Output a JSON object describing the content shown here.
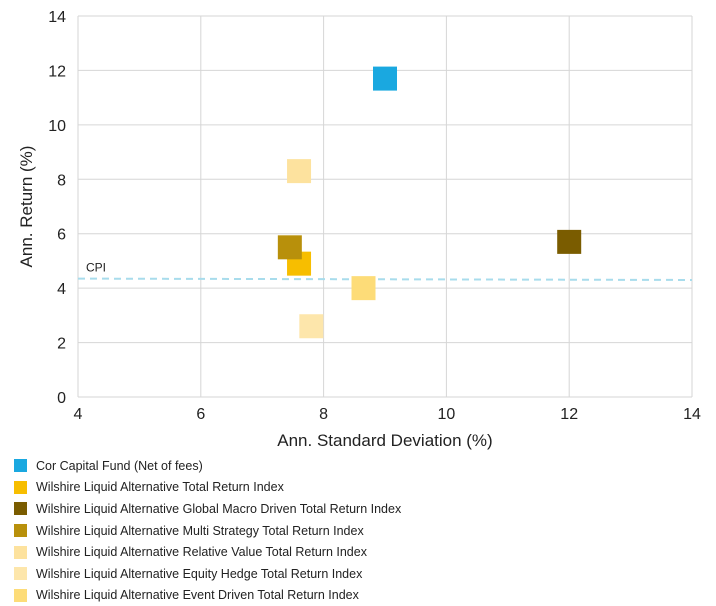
{
  "chart_data": {
    "type": "scatter",
    "xlabel": "Ann. Standard Deviation (%)",
    "ylabel": "Ann. Return (%)",
    "xlim": [
      4,
      14
    ],
    "ylim": [
      0,
      14
    ],
    "xticks": [
      4,
      6,
      8,
      10,
      12,
      14
    ],
    "yticks": [
      0,
      2,
      4,
      6,
      8,
      10,
      12,
      14
    ],
    "grid": true,
    "legend_position": "bottom",
    "marker": "square",
    "reference_line": {
      "label": "CPI",
      "y_start": 4.35,
      "y_end": 4.3,
      "color": "#a8dcec",
      "style": "dashed"
    },
    "series": [
      {
        "name": "Cor Capital Fund (Net of fees)",
        "color": "#1aa8e0",
        "points": [
          {
            "x": 9.0,
            "y": 11.7
          }
        ]
      },
      {
        "name": "Wilshire Liquid Alternative Total Return Index",
        "color": "#f7be00",
        "points": [
          {
            "x": 7.6,
            "y": 4.9
          }
        ]
      },
      {
        "name": "Wilshire Liquid Alternative Global Macro Driven Total Return Index",
        "color": "#7a5c00",
        "points": [
          {
            "x": 12.0,
            "y": 5.7
          }
        ]
      },
      {
        "name": "Wilshire Liquid Alternative Multi Strategy Total Return Index",
        "color": "#b8900b",
        "points": [
          {
            "x": 7.45,
            "y": 5.5
          }
        ]
      },
      {
        "name": "Wilshire Liquid Alternative Relative Value Total Return Index",
        "color": "#fde29e",
        "points": [
          {
            "x": 7.6,
            "y": 8.3
          }
        ]
      },
      {
        "name": "Wilshire Liquid Alternative Equity Hedge Total Return Index",
        "color": "#fde6ab",
        "points": [
          {
            "x": 7.8,
            "y": 2.6
          }
        ]
      },
      {
        "name": "Wilshire Liquid Alternative Event Driven Total Return Index",
        "color": "#fddc78",
        "points": [
          {
            "x": 8.65,
            "y": 4.0
          }
        ]
      }
    ]
  }
}
